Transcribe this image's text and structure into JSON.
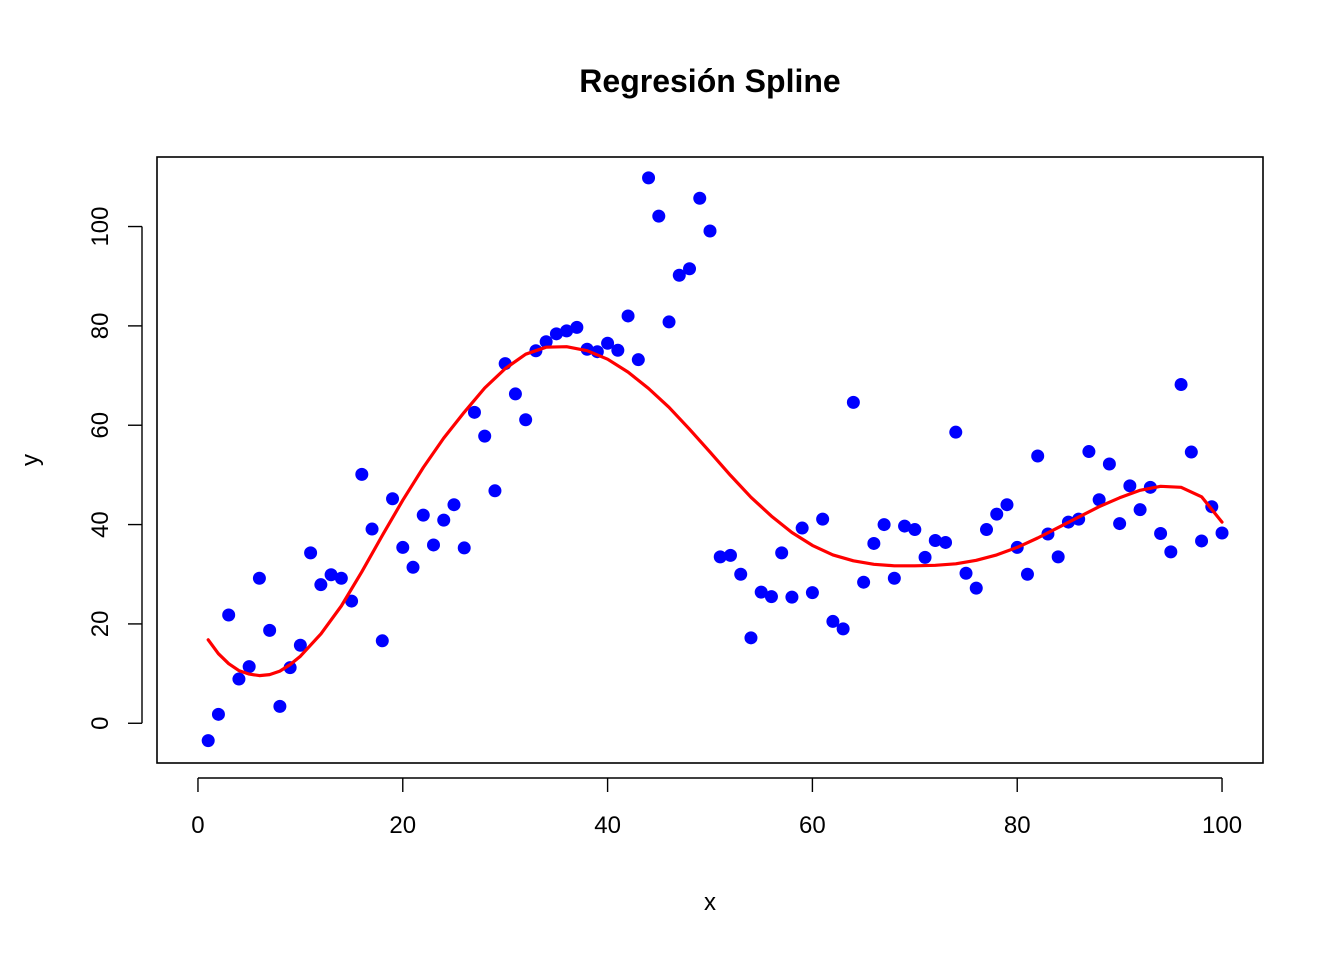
{
  "chart_data": {
    "type": "scatter",
    "title": "Regresión Spline",
    "xlabel": "x",
    "ylabel": "y",
    "xlim": [
      -4,
      104
    ],
    "ylim": [
      -8,
      114
    ],
    "xticks": [
      0,
      20,
      40,
      60,
      80,
      100
    ],
    "yticks": [
      0,
      20,
      40,
      60,
      80,
      100
    ],
    "grid": false,
    "colors": {
      "points": "#0000FF",
      "curve": "#FF0000"
    },
    "series": [
      {
        "type": "scatter",
        "x": [
          1,
          2,
          3,
          4,
          5,
          6,
          7,
          8,
          9,
          10,
          11,
          12,
          13,
          14,
          15,
          16,
          17,
          18,
          19,
          20,
          21,
          22,
          23,
          24,
          25,
          26,
          27,
          28,
          29,
          30,
          31,
          32,
          33,
          34,
          35,
          36,
          37,
          38,
          39,
          40,
          41,
          42,
          43,
          44,
          45,
          46,
          47,
          48,
          49,
          50,
          51,
          52,
          53,
          54,
          55,
          56,
          57,
          58,
          59,
          60,
          61,
          62,
          63,
          64,
          65,
          66,
          67,
          68,
          69,
          70,
          71,
          72,
          73,
          74,
          75,
          76,
          77,
          78,
          79,
          80,
          81,
          82,
          83,
          84,
          85,
          86,
          87,
          88,
          89,
          90,
          91,
          92,
          93,
          94,
          95,
          96,
          97,
          98,
          99,
          100
        ],
        "y": [
          -3.5,
          1.8,
          21.8,
          8.9,
          11.4,
          29.2,
          18.7,
          3.4,
          11.2,
          15.7,
          34.3,
          27.9,
          29.9,
          29.2,
          24.6,
          50.1,
          39.1,
          16.6,
          45.2,
          35.4,
          31.4,
          41.9,
          35.9,
          40.9,
          44.0,
          35.3,
          62.6,
          57.8,
          46.8,
          72.4,
          66.3,
          61.1,
          75.0,
          76.8,
          78.4,
          79.0,
          79.7,
          75.3,
          74.8,
          76.5,
          75.1,
          82.0,
          73.2,
          109.8,
          102.1,
          80.8,
          90.2,
          91.5,
          105.7,
          99.1,
          33.5,
          33.8,
          30.0,
          17.2,
          26.4,
          25.5,
          34.3,
          25.4,
          39.3,
          26.3,
          41.1,
          20.5,
          19.0,
          64.6,
          28.4,
          36.2,
          40.0,
          29.2,
          39.7,
          39.0,
          33.4,
          36.8,
          36.4,
          58.6,
          30.2,
          27.2,
          39.0,
          42.1,
          44.0,
          35.4,
          30.0,
          53.8,
          38.1,
          33.5,
          40.5,
          41.1,
          54.7,
          45.0,
          52.2,
          40.2,
          47.8,
          43.0,
          47.5,
          38.2,
          34.5,
          68.2,
          54.6,
          36.7,
          43.6,
          38.3
        ]
      },
      {
        "type": "line",
        "x": [
          1,
          2,
          3,
          4,
          5,
          6,
          7,
          8,
          9,
          10,
          12,
          14,
          16,
          18,
          20,
          22,
          24,
          26,
          28,
          30,
          32,
          34,
          36,
          38,
          40,
          42,
          44,
          46,
          48,
          50,
          52,
          54,
          56,
          58,
          60,
          62,
          64,
          66,
          68,
          70,
          72,
          74,
          76,
          78,
          80,
          82,
          84,
          86,
          88,
          90,
          92,
          94,
          96,
          98,
          100
        ],
        "y": [
          16.8,
          14.0,
          12.0,
          10.6,
          9.9,
          9.6,
          9.8,
          10.5,
          11.8,
          13.5,
          18.0,
          23.6,
          30.5,
          37.8,
          44.9,
          51.5,
          57.4,
          62.6,
          67.5,
          71.4,
          74.3,
          75.7,
          75.8,
          75.0,
          73.3,
          70.7,
          67.4,
          63.6,
          59.2,
          54.6,
          49.9,
          45.5,
          41.7,
          38.4,
          35.8,
          33.9,
          32.7,
          32.0,
          31.7,
          31.7,
          31.8,
          32.1,
          32.8,
          33.9,
          35.4,
          37.3,
          39.4,
          41.5,
          43.6,
          45.4,
          46.9,
          47.7,
          47.5,
          45.6,
          40.5
        ]
      }
    ]
  }
}
